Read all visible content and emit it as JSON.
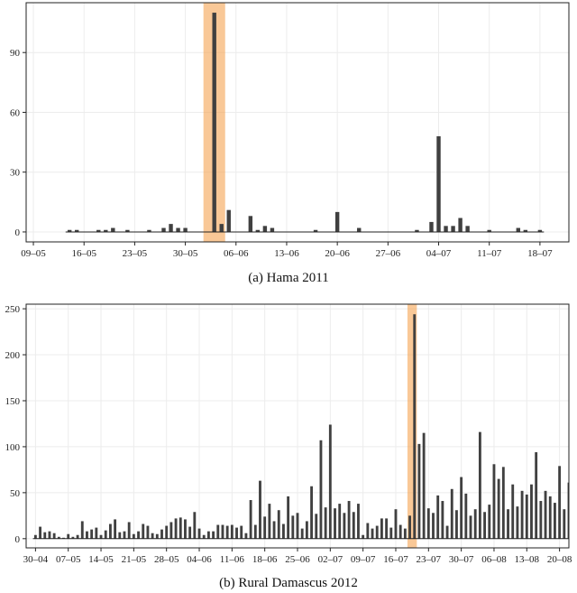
{
  "chart_data": [
    {
      "type": "bar",
      "caption": "(a) Hama 2011",
      "x_type": "date",
      "year": 2011,
      "xlim": [
        "2011-05-08",
        "2011-07-22"
      ],
      "xticks": [
        "2011-05-09",
        "2011-05-16",
        "2011-05-23",
        "2011-05-30",
        "2011-06-06",
        "2011-06-13",
        "2011-06-20",
        "2011-06-27",
        "2011-07-04",
        "2011-07-11",
        "2011-07-18"
      ],
      "xtick_labels": [
        "09–05",
        "16–05",
        "23–05",
        "30–05",
        "06–06",
        "13–06",
        "20–06",
        "27–06",
        "04–07",
        "11–07",
        "18–07"
      ],
      "ylim": [
        -5,
        115
      ],
      "yticks": [
        0,
        30,
        60,
        90
      ],
      "highlight": [
        "2011-06-02",
        "2011-06-04"
      ],
      "x": [
        "2011-05-14",
        "2011-05-15",
        "2011-05-18",
        "2011-05-19",
        "2011-05-20",
        "2011-05-22",
        "2011-05-25",
        "2011-05-27",
        "2011-05-28",
        "2011-05-29",
        "2011-05-30",
        "2011-06-03",
        "2011-06-04",
        "2011-06-05",
        "2011-06-08",
        "2011-06-09",
        "2011-06-10",
        "2011-06-11",
        "2011-06-17",
        "2011-06-20",
        "2011-06-23",
        "2011-07-01",
        "2011-07-03",
        "2011-07-04",
        "2011-07-05",
        "2011-07-06",
        "2011-07-07",
        "2011-07-08",
        "2011-07-11",
        "2011-07-15",
        "2011-07-16",
        "2011-07-18"
      ],
      "values": [
        1,
        1,
        1,
        1,
        2,
        1,
        1,
        2,
        4,
        2,
        2,
        110,
        4,
        11,
        8,
        1,
        3,
        2,
        1,
        10,
        2,
        1,
        5,
        48,
        3,
        3,
        7,
        3,
        1,
        2,
        1,
        1
      ],
      "baseline": true,
      "grid": true
    },
    {
      "type": "bar",
      "caption": "(b) Rural Damascus 2012",
      "x_type": "date",
      "year": 2012,
      "xlim": [
        "2012-04-28",
        "2012-08-22"
      ],
      "xticks": [
        "2012-04-30",
        "2012-05-07",
        "2012-05-14",
        "2012-05-21",
        "2012-05-28",
        "2012-06-04",
        "2012-06-11",
        "2012-06-18",
        "2012-06-25",
        "2012-07-02",
        "2012-07-09",
        "2012-07-16",
        "2012-07-23",
        "2012-07-30",
        "2012-08-06",
        "2012-08-13",
        "2012-08-20"
      ],
      "xtick_labels": [
        "30–04",
        "07–05",
        "14–05",
        "21–05",
        "28–05",
        "04–06",
        "11–06",
        "18–06",
        "25–06",
        "02–07",
        "09–07",
        "16–07",
        "23–07",
        "30–07",
        "06–08",
        "13–08",
        "20–08"
      ],
      "ylim": [
        -10,
        255
      ],
      "yticks": [
        0,
        50,
        100,
        150,
        200,
        250
      ],
      "highlight": [
        "2012-07-19",
        "2012-07-20"
      ],
      "x_start": "2012-04-30",
      "values": [
        4,
        13,
        7,
        8,
        6,
        2,
        1,
        5,
        2,
        4,
        19,
        8,
        10,
        12,
        4,
        9,
        16,
        21,
        7,
        8,
        18,
        5,
        8,
        16,
        14,
        6,
        5,
        10,
        14,
        18,
        22,
        23,
        21,
        13,
        29,
        11,
        4,
        8,
        8,
        15,
        15,
        14,
        15,
        12,
        14,
        6,
        42,
        15,
        63,
        24,
        38,
        19,
        31,
        16,
        46,
        25,
        28,
        11,
        19,
        57,
        27,
        107,
        34,
        124,
        33,
        38,
        28,
        41,
        29,
        38,
        4,
        17,
        11,
        14,
        22,
        22,
        12,
        32,
        15,
        11,
        25,
        244,
        103,
        115,
        33,
        28,
        47,
        41,
        14,
        54,
        31,
        67,
        49,
        25,
        32,
        116,
        29,
        37,
        81,
        65,
        78,
        32,
        59,
        35,
        52,
        48,
        59,
        94,
        41,
        52,
        46,
        39,
        79,
        32,
        61
      ],
      "baseline": true,
      "grid": true
    }
  ]
}
